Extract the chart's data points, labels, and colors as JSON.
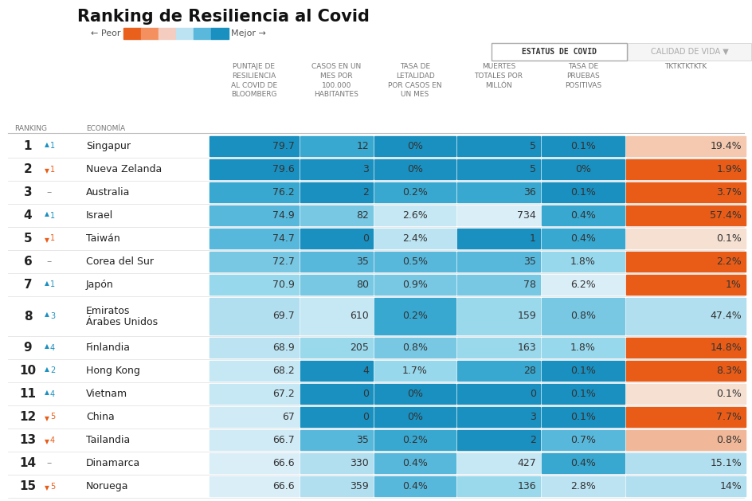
{
  "title": "Ranking de Resiliencia al Covid",
  "legend_peor": "← Peor",
  "legend_mejor": "Mejor →",
  "tab1": "ESTATUS DE COVID",
  "tab2": "CALIDAD DE VIDA ▼",
  "col_headers_top": [
    "PUNTAJE DE\nRESILIENCIA\nAL COVID DE\nBLOOMBERG",
    "CASOS EN UN\nMES POR\n100.000\nHABITANTES",
    "TASA DE\nLETALIDAD\nPOR CASOS EN\nUN MES",
    "MUERTES\nTOTALES POR\nMILLÓN",
    "TASA DE\nPRUEBAS\nPOSITIVAS",
    "TKTKTKTKTK"
  ],
  "col_headers_bot": [
    "BLOOMBERG",
    "HABITANTES",
    "UN MES",
    "MILLÓN",
    "POSITIVAS",
    "TKTKTKTKTK"
  ],
  "rows": [
    {
      "rank": "1",
      "arrow": "▲1",
      "up": true,
      "country": "Singapur",
      "score": "79.7",
      "cases": "12",
      "lethality": "0%",
      "deaths": "5",
      "test_rate": "0.1%",
      "last_col": "19.4%"
    },
    {
      "rank": "2",
      "arrow": "▼1",
      "up": false,
      "country": "Nueva Zelanda",
      "score": "79.6",
      "cases": "3",
      "lethality": "0%",
      "deaths": "5",
      "test_rate": "0%",
      "last_col": "1.9%"
    },
    {
      "rank": "3",
      "arrow": "–1",
      "up": null,
      "country": "Australia",
      "score": "76.2",
      "cases": "2",
      "lethality": "0.2%",
      "deaths": "36",
      "test_rate": "0.1%",
      "last_col": "3.7%"
    },
    {
      "rank": "4",
      "arrow": "▲1",
      "up": true,
      "country": "Israel",
      "score": "74.9",
      "cases": "82",
      "lethality": "2.6%",
      "deaths": "734",
      "test_rate": "0.4%",
      "last_col": "57.4%"
    },
    {
      "rank": "5",
      "arrow": "▼1",
      "up": false,
      "country": "Taiwán",
      "score": "74.7",
      "cases": "0",
      "lethality": "2.4%",
      "deaths": "1",
      "test_rate": "0.4%",
      "last_col": "0.1%"
    },
    {
      "rank": "6",
      "arrow": "–1",
      "up": null,
      "country": "Corea del Sur",
      "score": "72.7",
      "cases": "35",
      "lethality": "0.5%",
      "deaths": "35",
      "test_rate": "1.8%",
      "last_col": "2.2%"
    },
    {
      "rank": "7",
      "arrow": "▲1",
      "up": true,
      "country": "Japón",
      "score": "70.9",
      "cases": "80",
      "lethality": "0.9%",
      "deaths": "78",
      "test_rate": "6.2%",
      "last_col": "1%"
    },
    {
      "rank": "8",
      "arrow": "▲3",
      "up": true,
      "country": "Emiratos\nÁrabes Unidos",
      "score": "69.7",
      "cases": "610",
      "lethality": "0.2%",
      "deaths": "159",
      "test_rate": "0.8%",
      "last_col": "47.4%"
    },
    {
      "rank": "9",
      "arrow": "▲4",
      "up": true,
      "country": "Finlandia",
      "score": "68.9",
      "cases": "205",
      "lethality": "0.8%",
      "deaths": "163",
      "test_rate": "1.8%",
      "last_col": "14.8%"
    },
    {
      "rank": "10",
      "arrow": "▲2",
      "up": true,
      "country": "Hong Kong",
      "score": "68.2",
      "cases": "4",
      "lethality": "1.7%",
      "deaths": "28",
      "test_rate": "0.1%",
      "last_col": "8.3%"
    },
    {
      "rank": "11",
      "arrow": "▲4",
      "up": true,
      "country": "Vietnam",
      "score": "67.2",
      "cases": "0",
      "lethality": "0%",
      "deaths": "0",
      "test_rate": "0.1%",
      "last_col": "0.1%"
    },
    {
      "rank": "12",
      "arrow": "▼5",
      "up": false,
      "country": "China",
      "score": "67",
      "cases": "0",
      "lethality": "0%",
      "deaths": "3",
      "test_rate": "0.1%",
      "last_col": "7.7%"
    },
    {
      "rank": "13",
      "arrow": "▼4",
      "up": false,
      "country": "Tailandia",
      "score": "66.7",
      "cases": "35",
      "lethality": "0.2%",
      "deaths": "2",
      "test_rate": "0.7%",
      "last_col": "0.8%"
    },
    {
      "rank": "14",
      "arrow": "–1",
      "up": null,
      "country": "Dinamarca",
      "score": "66.6",
      "cases": "330",
      "lethality": "0.4%",
      "deaths": "427",
      "test_rate": "0.4%",
      "last_col": "15.1%"
    },
    {
      "rank": "15",
      "arrow": "▼5",
      "up": false,
      "country": "Noruega",
      "score": "66.6",
      "cases": "359",
      "lethality": "0.4%",
      "deaths": "136",
      "test_rate": "2.8%",
      "last_col": "14%"
    }
  ],
  "score_clrs": [
    "#1a90c0",
    "#1a90c0",
    "#38a8d0",
    "#58b8dc",
    "#58b8dc",
    "#78c8e4",
    "#98d8ec",
    "#b2dff0",
    "#bce3f2",
    "#c6e7f4",
    "#c6e7f4",
    "#d0ebf6",
    "#d0ebf6",
    "#daeef8",
    "#daeef8"
  ],
  "cases_clrs": [
    "#38a8d0",
    "#1a90c0",
    "#1a90c0",
    "#78c8e4",
    "#1a90c0",
    "#58b8dc",
    "#78c8e4",
    "#c6e7f4",
    "#9ad8ec",
    "#1a90c0",
    "#1a90c0",
    "#1a90c0",
    "#58b8dc",
    "#b2dff0",
    "#b2dff0"
  ],
  "leth_clrs": [
    "#1a90c0",
    "#1a90c0",
    "#38a8d0",
    "#c6e7f4",
    "#bce3f2",
    "#58b8dc",
    "#78c8e4",
    "#38a8d0",
    "#78c8e4",
    "#98d8ec",
    "#1a90c0",
    "#1a90c0",
    "#38a8d0",
    "#58b8dc",
    "#58b8dc"
  ],
  "deaths_clrs": [
    "#1a90c0",
    "#1a90c0",
    "#38a8d0",
    "#daeef8",
    "#1a90c0",
    "#58b8dc",
    "#78c8e4",
    "#9ad8ec",
    "#9ad8ec",
    "#38a8d0",
    "#1a90c0",
    "#1a90c0",
    "#1a90c0",
    "#c6e7f4",
    "#9ad8ec"
  ],
  "test_clrs": [
    "#1a90c0",
    "#1a90c0",
    "#1a90c0",
    "#38a8d0",
    "#38a8d0",
    "#98d8ec",
    "#daeef8",
    "#78c8e4",
    "#98d8ec",
    "#1a90c0",
    "#1a90c0",
    "#1a90c0",
    "#58b8dc",
    "#38a8d0",
    "#bce3f2"
  ],
  "last_clrs": [
    "#f5c8b0",
    "#e85c18",
    "#e85c18",
    "#e85c18",
    "#f5e0d2",
    "#e85c18",
    "#e85c18",
    "#b2dff0",
    "#e85c18",
    "#e85c18",
    "#f5e0d2",
    "#e85c18",
    "#f0b898",
    "#b2dff0",
    "#b2dff0"
  ],
  "up_color": "#1a90c0",
  "down_color": "#e85c18",
  "neutral_color": "#888888",
  "bg_color": "#ffffff",
  "header_text_color": "#777777",
  "rank_text_color": "#222222",
  "cell_text_color": "#333333",
  "line_color": "#dddddd",
  "tab1_border": "#aaaaaa",
  "tab2_color": "#aaaaaa",
  "bar_colors": [
    "#e8601c",
    "#f49060",
    "#f5ccc0",
    "#bce3f2",
    "#5ab8dc",
    "#1a90c0"
  ]
}
